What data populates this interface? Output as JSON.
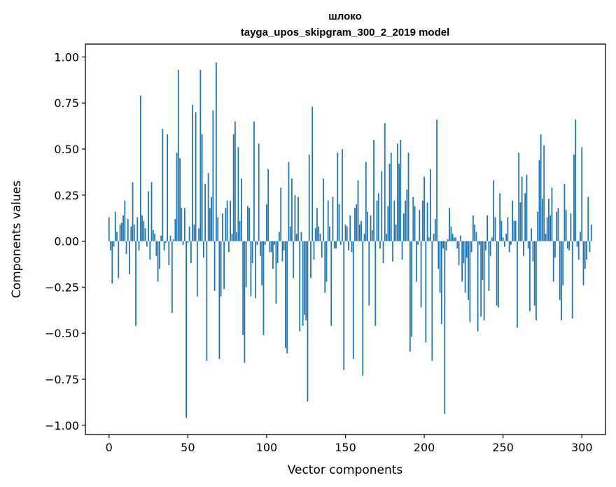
{
  "chart_data": {
    "type": "bar",
    "title": "шлоко",
    "subtitle": "tayga_upos_skipgram_300_2_2019 model",
    "xlabel": "Vector components",
    "ylabel": "Components values",
    "xlim": [
      -15,
      315
    ],
    "ylim": [
      -1.05,
      1.07
    ],
    "xticks": [
      0,
      50,
      100,
      150,
      200,
      250,
      300
    ],
    "yticks": [
      1.0,
      0.75,
      0.5,
      0.25,
      0.0,
      -0.25,
      -0.5,
      -0.75,
      -1.0
    ],
    "ytick_labels": [
      "1.00",
      "0.75",
      "0.50",
      "0.25",
      "0.00",
      "−0.25",
      "−0.50",
      "−0.75",
      "−1.00"
    ],
    "bar_color": "#1f77b4",
    "grid": false,
    "x_start": 0,
    "values": [
      0.13,
      -0.05,
      -0.23,
      -0.03,
      0.16,
      0.05,
      -0.2,
      0.09,
      0.1,
      0.14,
      0.22,
      -0.07,
      0.12,
      -0.18,
      0.08,
      0.32,
      0.09,
      -0.46,
      0.13,
      -0.05,
      0.79,
      0.14,
      0.11,
      0.07,
      -0.03,
      0.27,
      -0.1,
      0.32,
      0.06,
      0.04,
      -0.08,
      -0.22,
      -0.15,
      0.03,
      0.61,
      -0.05,
      -0.01,
      0.58,
      -0.13,
      0.03,
      -0.39,
      0.01,
      0.12,
      0.48,
      0.93,
      0.45,
      0.18,
      -0.02,
      0.18,
      -0.96,
      -0.01,
      0.08,
      -0.12,
      0.74,
      0.09,
      0.7,
      -0.3,
      0.07,
      0.93,
      0.58,
      -0.09,
      0.31,
      -0.65,
      0.37,
      0.18,
      0.24,
      0.71,
      -0.27,
      0.97,
      0.13,
      -0.64,
      -0.3,
      0.15,
      -0.26,
      0.18,
      0.22,
      -0.06,
      0.22,
      0.04,
      0.58,
      0.65,
      0.05,
      0.51,
      0.11,
      0.34,
      -0.51,
      -0.66,
      -0.25,
      0.19,
      0.18,
      -0.3,
      -0.12,
      0.65,
      -0.31,
      -0.02,
      0.53,
      -0.08,
      -0.24,
      -0.51,
      -0.02,
      0.2,
      0.39,
      -0.06,
      -0.06,
      -0.15,
      -0.02,
      -0.34,
      -0.12,
      0.05,
      0.29,
      -0.11,
      -0.05,
      -0.58,
      -0.61,
      0.43,
      0.08,
      0.34,
      -0.2,
      0.25,
      0.04,
      0.24,
      -0.49,
      0.05,
      -0.46,
      -0.4,
      -0.43,
      -0.87,
      0.47,
      -0.2,
      0.73,
      -0.1,
      0.07,
      0.18,
      0.08,
      0.04,
      -0.09,
      0.34,
      -0.28,
      -0.22,
      0.22,
      0.08,
      -0.46,
      0.24,
      -0.04,
      -0.04,
      0.48,
      0.2,
      -0.02,
      0.5,
      -0.7,
      0.09,
      0.08,
      -0.05,
      0.14,
      -0.06,
      -0.64,
      0.18,
      0.2,
      0.33,
      0.09,
      0.11,
      -0.73,
      0.04,
      0.43,
      0.16,
      -0.35,
      0.14,
      0.06,
      0.55,
      -0.46,
      0.22,
      0.26,
      -0.04,
      0.38,
      -0.12,
      0.64,
      0.04,
      0.19,
      0.42,
      0.48,
      -0.11,
      0.22,
      0.09,
      0.53,
      0.42,
      0.55,
      -0.1,
      0.15,
      0.22,
      0.28,
      0.48,
      -0.6,
      -0.52,
      0.24,
      0.19,
      -0.22,
      -0.02,
      0.17,
      -0.36,
      0.22,
      0.35,
      -0.55,
      0.21,
      0.02,
      0.39,
      -0.65,
      0.04,
      0.12,
      0.66,
      -0.15,
      -0.28,
      -0.45,
      -0.04,
      -0.94,
      -0.05,
      0.01,
      0.18,
      0.08,
      0.04,
      0.02,
      0.02,
      -0.04,
      -0.13,
      0.03,
      -0.22,
      -0.12,
      -0.28,
      -0.09,
      -0.32,
      -0.44,
      -0.06,
      0.14,
      0.09,
      0.05,
      -0.49,
      -0.02,
      -0.41,
      -0.21,
      -0.43,
      -0.05,
      0.14,
      -0.27,
      -0.08,
      0.02,
      0.33,
      0.13,
      -0.35,
      -0.36,
      0.26,
      0.11,
      0.02,
      -0.03,
      0.04,
      0.13,
      -0.06,
      -0.02,
      0.22,
      0.11,
      0.11,
      -0.47,
      0.48,
      0.21,
      0.35,
      -0.08,
      0.26,
      0.36,
      -0.04,
      -0.38,
      0.07,
      -0.11,
      -0.35,
      -0.43,
      0.16,
      0.44,
      0.58,
      0.23,
      0.52,
      0.04,
      0.13,
      0.23,
      0.14,
      0.29,
      -0.22,
      -0.09,
      0.16,
      0.18,
      -0.32,
      -0.43,
      -0.24,
      0.31,
      0.17,
      -0.04,
      -0.05,
      0.15,
      -0.42,
      0.47,
      0.66,
      -0.03,
      -0.1,
      0.05,
      0.51,
      -0.24,
      -0.15,
      -0.1,
      0.24,
      -0.06,
      0.09
    ]
  }
}
